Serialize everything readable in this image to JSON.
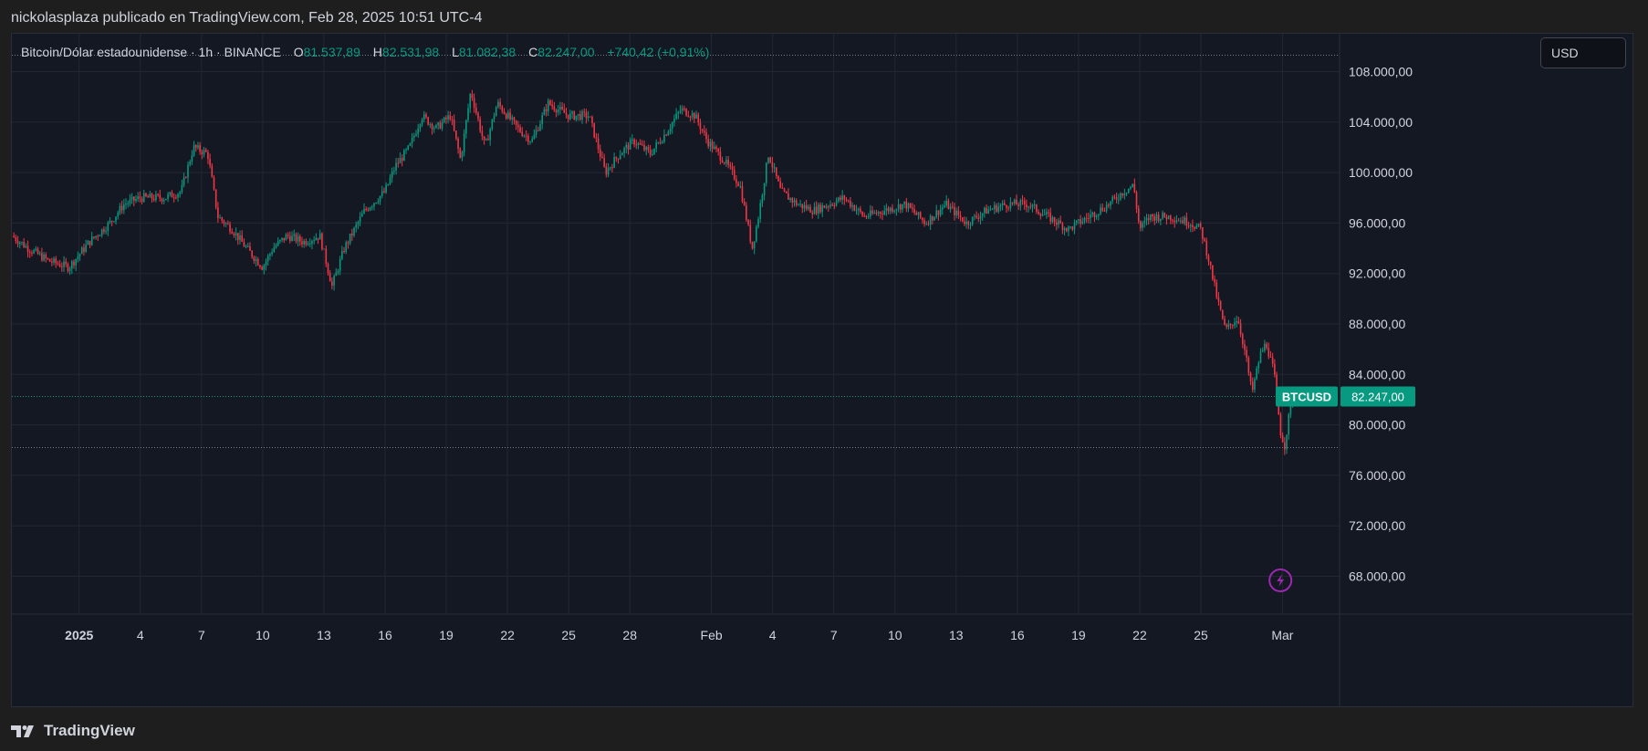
{
  "header": {
    "published_line": "nickolasplaza publicado en TradingView.com, Feb 28, 2025 10:51 UTC-4"
  },
  "legend": {
    "symbol_line": "Bitcoin/Dólar estadounidense · 1h · BINANCE",
    "open_label": "O",
    "open_value": "81.537,89",
    "high_label": "H",
    "high_value": "82.531,98",
    "low_label": "L",
    "low_value": "81.082,38",
    "close_label": "C",
    "close_value": "82.247,00",
    "change": "+740,42 (+0,91%)"
  },
  "currency_button": {
    "label": "USD"
  },
  "price_tag": {
    "symbol": "BTCUSD",
    "price": "82.247,00"
  },
  "footer": {
    "brand": "TradingView"
  },
  "colors": {
    "up": "#089981",
    "down": "#f23645",
    "background": "#141823",
    "grid": "#232733",
    "axis_text": "#d1d4dc",
    "lightning": "#9c27b0"
  },
  "icons": [
    "lightning-icon",
    "tradingview-logo-icon"
  ],
  "chart_data": {
    "type": "candlestick",
    "title": "Bitcoin/Dólar estadounidense · 1h · BINANCE",
    "ylim": [
      65000,
      111000
    ],
    "y_ticks": [
      {
        "value": 108000,
        "label": "108.000,00"
      },
      {
        "value": 104000,
        "label": "104.000,00"
      },
      {
        "value": 100000,
        "label": "100.000,00"
      },
      {
        "value": 96000,
        "label": "96.000,00"
      },
      {
        "value": 92000,
        "label": "92.000,00"
      },
      {
        "value": 88000,
        "label": "88.000,00"
      },
      {
        "value": 84000,
        "label": "84.000,00"
      },
      {
        "value": 80000,
        "label": "80.000,00"
      },
      {
        "value": 76000,
        "label": "76.000,00"
      },
      {
        "value": 72000,
        "label": "72.000,00"
      },
      {
        "value": 68000,
        "label": "68.000,00"
      }
    ],
    "x_ticks": [
      {
        "day": 1,
        "label": "2025",
        "bold": true
      },
      {
        "day": 4,
        "label": "4"
      },
      {
        "day": 7,
        "label": "7"
      },
      {
        "day": 10,
        "label": "10"
      },
      {
        "day": 13,
        "label": "13"
      },
      {
        "day": 16,
        "label": "16"
      },
      {
        "day": 19,
        "label": "19"
      },
      {
        "day": 22,
        "label": "22"
      },
      {
        "day": 25,
        "label": "25"
      },
      {
        "day": 28,
        "label": "28"
      },
      {
        "day": 32,
        "label": "Feb"
      },
      {
        "day": 35,
        "label": "4"
      },
      {
        "day": 38,
        "label": "7"
      },
      {
        "day": 41,
        "label": "10"
      },
      {
        "day": 44,
        "label": "13"
      },
      {
        "day": 47,
        "label": "16"
      },
      {
        "day": 50,
        "label": "19"
      },
      {
        "day": 53,
        "label": "22"
      },
      {
        "day": 56,
        "label": "25"
      },
      {
        "day": 60,
        "label": "Mar"
      }
    ],
    "x_range_days": [
      -2.3,
      62.8
    ],
    "price_path": [
      {
        "day": -2.3,
        "price": 95000
      },
      {
        "day": -1.5,
        "price": 94000
      },
      {
        "day": -0.5,
        "price": 93000
      },
      {
        "day": 0.5,
        "price": 92500
      },
      {
        "day": 1.5,
        "price": 94500
      },
      {
        "day": 2.5,
        "price": 96000
      },
      {
        "day": 3.2,
        "price": 97500
      },
      {
        "day": 4,
        "price": 98000
      },
      {
        "day": 5.2,
        "price": 98000
      },
      {
        "day": 6,
        "price": 98500
      },
      {
        "day": 6.6,
        "price": 102000
      },
      {
        "day": 7.3,
        "price": 101500
      },
      {
        "day": 7.8,
        "price": 96500
      },
      {
        "day": 8.5,
        "price": 95500
      },
      {
        "day": 9.2,
        "price": 94000
      },
      {
        "day": 10,
        "price": 92500
      },
      {
        "day": 10.5,
        "price": 94000
      },
      {
        "day": 11.2,
        "price": 95000
      },
      {
        "day": 12,
        "price": 94500
      },
      {
        "day": 12.8,
        "price": 95000
      },
      {
        "day": 13.4,
        "price": 91000
      },
      {
        "day": 14,
        "price": 94000
      },
      {
        "day": 15,
        "price": 97000
      },
      {
        "day": 16,
        "price": 98500
      },
      {
        "day": 16.5,
        "price": 100500
      },
      {
        "day": 17.2,
        "price": 102000
      },
      {
        "day": 17.8,
        "price": 104500
      },
      {
        "day": 18.5,
        "price": 103500
      },
      {
        "day": 19.2,
        "price": 104500
      },
      {
        "day": 19.7,
        "price": 101000
      },
      {
        "day": 20.2,
        "price": 106500
      },
      {
        "day": 20.9,
        "price": 102000
      },
      {
        "day": 21.5,
        "price": 105500
      },
      {
        "day": 22.5,
        "price": 103500
      },
      {
        "day": 23.2,
        "price": 102500
      },
      {
        "day": 24,
        "price": 105500
      },
      {
        "day": 25,
        "price": 104500
      },
      {
        "day": 26,
        "price": 104500
      },
      {
        "day": 26.8,
        "price": 100000
      },
      {
        "day": 27.5,
        "price": 101500
      },
      {
        "day": 28.2,
        "price": 102500
      },
      {
        "day": 29,
        "price": 101500
      },
      {
        "day": 29.7,
        "price": 103000
      },
      {
        "day": 30.5,
        "price": 105000
      },
      {
        "day": 31.2,
        "price": 104500
      },
      {
        "day": 31.8,
        "price": 102500
      },
      {
        "day": 32.6,
        "price": 101000
      },
      {
        "day": 33.4,
        "price": 99000
      },
      {
        "day": 34,
        "price": 94000
      },
      {
        "day": 34.3,
        "price": 96500
      },
      {
        "day": 34.8,
        "price": 101500
      },
      {
        "day": 35.4,
        "price": 98500
      },
      {
        "day": 36.2,
        "price": 97500
      },
      {
        "day": 37,
        "price": 97000
      },
      {
        "day": 37.8,
        "price": 97500
      },
      {
        "day": 38.5,
        "price": 98000
      },
      {
        "day": 39.5,
        "price": 96500
      },
      {
        "day": 40.5,
        "price": 97000
      },
      {
        "day": 41.5,
        "price": 97500
      },
      {
        "day": 42.5,
        "price": 96000
      },
      {
        "day": 43.5,
        "price": 97500
      },
      {
        "day": 44.5,
        "price": 96000
      },
      {
        "day": 45.5,
        "price": 97000
      },
      {
        "day": 46.5,
        "price": 97500
      },
      {
        "day": 47.5,
        "price": 97500
      },
      {
        "day": 48.5,
        "price": 96500
      },
      {
        "day": 49.5,
        "price": 95500
      },
      {
        "day": 50.5,
        "price": 96500
      },
      {
        "day": 51.5,
        "price": 97500
      },
      {
        "day": 52.2,
        "price": 98500
      },
      {
        "day": 52.7,
        "price": 99000
      },
      {
        "day": 53,
        "price": 95500
      },
      {
        "day": 53.5,
        "price": 96500
      },
      {
        "day": 54.5,
        "price": 96500
      },
      {
        "day": 55.5,
        "price": 96000
      },
      {
        "day": 56,
        "price": 95500
      },
      {
        "day": 56.4,
        "price": 93000
      },
      {
        "day": 56.8,
        "price": 90000
      },
      {
        "day": 57.2,
        "price": 87500
      },
      {
        "day": 57.8,
        "price": 88500
      },
      {
        "day": 58.2,
        "price": 85500
      },
      {
        "day": 58.5,
        "price": 82500
      },
      {
        "day": 58.9,
        "price": 85500
      },
      {
        "day": 59.2,
        "price": 86500
      },
      {
        "day": 59.6,
        "price": 84000
      },
      {
        "day": 59.9,
        "price": 79500
      },
      {
        "day": 60.1,
        "price": 78300
      },
      {
        "day": 60.3,
        "price": 80500
      },
      {
        "day": 60.5,
        "price": 82247
      }
    ],
    "high_line": 109300,
    "low_line": 78200,
    "last_price": 82247
  }
}
